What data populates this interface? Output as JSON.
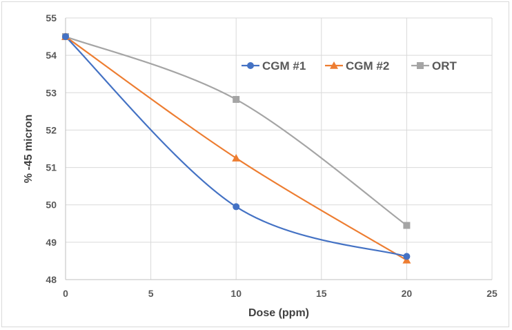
{
  "chart_data": {
    "type": "line",
    "smooth": true,
    "title": "",
    "xlabel": "Dose (ppm)",
    "ylabel": "% -45 micron",
    "xlim": [
      0,
      25
    ],
    "ylim": [
      48,
      55
    ],
    "xticks": [
      0,
      5,
      10,
      15,
      20,
      25
    ],
    "yticks": [
      48,
      49,
      50,
      51,
      52,
      53,
      54,
      55
    ],
    "grid": true,
    "legend_position": "top-right",
    "x": [
      0,
      10,
      20
    ],
    "series": [
      {
        "name": "CGM #1",
        "values": [
          54.5,
          49.95,
          48.62
        ],
        "color": "#4472C4",
        "marker": "circle"
      },
      {
        "name": "CGM #2",
        "values": [
          54.5,
          51.25,
          48.52
        ],
        "color": "#ED7D31",
        "marker": "triangle"
      },
      {
        "name": "ORT",
        "values": [
          54.5,
          52.82,
          49.45
        ],
        "color": "#A5A5A5",
        "marker": "square"
      }
    ]
  }
}
